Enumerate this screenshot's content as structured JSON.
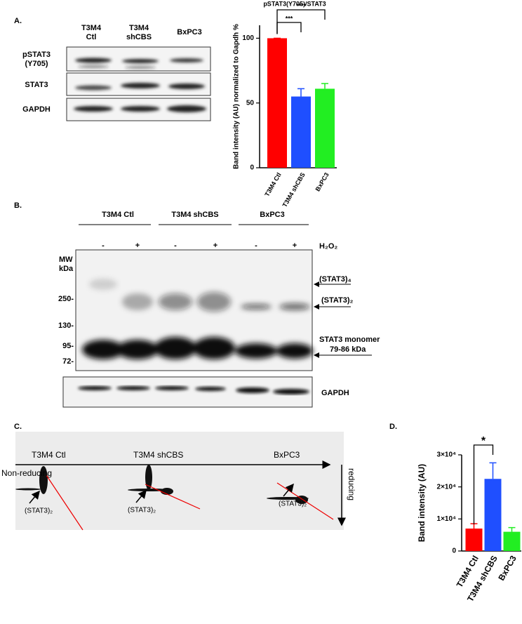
{
  "panel_a": {
    "label": "A.",
    "lanes": [
      [
        "T3M4",
        "Ctl"
      ],
      [
        "T3M4",
        "shCBS"
      ],
      [
        "BxPC3"
      ]
    ],
    "rows": [
      [
        "pSTAT3",
        "(Y705)"
      ],
      [
        "STAT3"
      ],
      [
        "GAPDH"
      ]
    ]
  },
  "panel_b": {
    "label": "B.",
    "groups": [
      "T3M4 Ctl",
      "T3M4 shCBS",
      "BxPC3"
    ],
    "treatments": [
      "-",
      "+",
      "-",
      "+",
      "-",
      "+"
    ],
    "reagent": "H₂O₂",
    "mw_title": [
      "MW",
      "kDa"
    ],
    "mw_markers": [
      "250-",
      "130-",
      "95-",
      "72-"
    ],
    "annotations": [
      "(STAT3)₄",
      "(STAT3)₂",
      "STAT3 monomer",
      "79-86 kDa"
    ],
    "loading_control": "GAPDH"
  },
  "panel_c": {
    "label": "C.",
    "samples": [
      "T3M4 Ctl",
      "T3M4 shCBS",
      "BxPC3"
    ],
    "axis_x": "Non-reducing",
    "axis_y": "reducing",
    "spot_labels": [
      "(STAT3)₂",
      "(STAT3)₂",
      "(STAT3)₂"
    ]
  },
  "panel_d": {
    "label": "D."
  },
  "chart_data": [
    {
      "type": "bar",
      "title": "pSTAT3(Y705)/STAT3",
      "y_label": "Band intensity (AU) normalized to Gapdh %",
      "categories": [
        "T3M4 Ctl",
        "T3M4 shCBS",
        "BxPC3"
      ],
      "values": [
        100,
        55,
        61
      ],
      "errors": [
        0,
        6,
        4
      ],
      "colors": [
        "#ff0000",
        "#1f4fff",
        "#22ee22"
      ],
      "ylim": [
        0,
        110
      ],
      "yticks": [
        0,
        50,
        100
      ],
      "significance": [
        {
          "label": "***",
          "between": [
            "T3M4 Ctl",
            "T3M4 shCBS"
          ]
        },
        {
          "label": "****",
          "between": [
            "T3M4 Ctl",
            "BxPC3"
          ]
        }
      ]
    },
    {
      "type": "bar",
      "y_label": "Band intensity (AU)",
      "categories": [
        "T3M4 Ctl",
        "T3M4 shCBS",
        "BxPC3"
      ],
      "values": [
        7000,
        22500,
        6000
      ],
      "errors": [
        1500,
        5000,
        1300
      ],
      "colors": [
        "#ff0000",
        "#1f4fff",
        "#22ee22"
      ],
      "ylim": [
        0,
        30000
      ],
      "yticks": [
        0,
        {
          "value": 10000,
          "label": "1×10⁴"
        },
        {
          "value": 20000,
          "label": "2×10⁴"
        },
        {
          "value": 30000,
          "label": "3×10⁴"
        }
      ],
      "significance": [
        {
          "label": "*",
          "between": [
            "T3M4 Ctl",
            "T3M4 shCBS"
          ]
        }
      ]
    }
  ]
}
